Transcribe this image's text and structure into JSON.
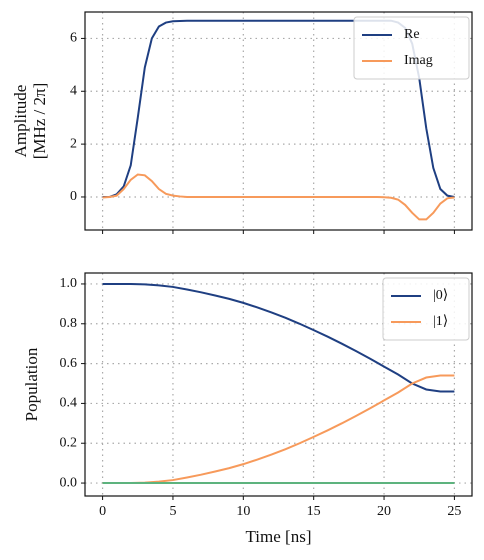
{
  "chart_data": [
    {
      "type": "line",
      "ylabel": [
        "Amplitude",
        "[MHz / 2π]"
      ],
      "x": [
        0,
        0.5,
        1,
        1.5,
        2,
        2.5,
        3,
        3.5,
        4,
        4.5,
        5,
        5.5,
        6,
        6.5,
        7,
        7.5,
        8,
        8.5,
        9,
        9.5,
        10,
        10.5,
        11,
        11.5,
        12,
        12.5,
        13,
        13.5,
        14,
        14.5,
        15,
        15.5,
        16,
        16.5,
        17,
        17.5,
        18,
        18.5,
        19,
        19.5,
        20,
        20.5,
        21,
        21.5,
        22,
        22.5,
        23,
        23.5,
        24,
        24.5,
        25
      ],
      "series": [
        {
          "name": "Re",
          "color": "#1f3f82",
          "values": [
            0,
            0,
            0.1,
            0.4,
            1.2,
            3.0,
            4.9,
            6.0,
            6.45,
            6.6,
            6.65,
            6.66,
            6.67,
            6.67,
            6.67,
            6.67,
            6.67,
            6.67,
            6.67,
            6.67,
            6.67,
            6.67,
            6.67,
            6.67,
            6.67,
            6.67,
            6.67,
            6.67,
            6.67,
            6.67,
            6.67,
            6.67,
            6.67,
            6.67,
            6.67,
            6.67,
            6.67,
            6.67,
            6.67,
            6.67,
            6.67,
            6.67,
            6.6,
            6.4,
            5.8,
            4.5,
            2.6,
            1.1,
            0.3,
            0.05,
            0
          ]
        },
        {
          "name": "Imag",
          "color": "#f79a5b",
          "values": [
            -0.02,
            0,
            0.05,
            0.3,
            0.65,
            0.85,
            0.82,
            0.6,
            0.3,
            0.12,
            0.05,
            0.02,
            0,
            0,
            0,
            0,
            0,
            0,
            0,
            0,
            0,
            0,
            0,
            0,
            0,
            0,
            0,
            0,
            0,
            0,
            0,
            0,
            0,
            0,
            0,
            0,
            0,
            0,
            0,
            0,
            -0.01,
            -0.03,
            -0.1,
            -0.3,
            -0.6,
            -0.85,
            -0.85,
            -0.6,
            -0.25,
            -0.05,
            -0.02
          ]
        }
      ],
      "xlim": [
        -1.25,
        26.25
      ],
      "xticks": [
        0,
        5,
        10,
        15,
        20,
        25
      ],
      "show_xtick_labels": false,
      "ylim": [
        -1.25,
        7.0
      ],
      "yticks": [
        0,
        2,
        4,
        6
      ],
      "grid": true,
      "legend": "upper right"
    },
    {
      "type": "line",
      "xlabel": "Time [ns]",
      "ylabel": [
        "Population"
      ],
      "x": [
        0,
        1,
        2,
        3,
        4,
        5,
        6,
        7,
        8,
        9,
        10,
        11,
        12,
        13,
        14,
        15,
        16,
        17,
        18,
        19,
        20,
        21,
        22,
        23,
        24,
        25
      ],
      "series": [
        {
          "name": "|0⟩",
          "color": "#1f3f82",
          "values": [
            1.0,
            1.0,
            1.0,
            0.998,
            0.993,
            0.985,
            0.972,
            0.958,
            0.942,
            0.925,
            0.905,
            0.882,
            0.857,
            0.83,
            0.8,
            0.768,
            0.735,
            0.7,
            0.663,
            0.625,
            0.585,
            0.545,
            0.5,
            0.47,
            0.46,
            0.46
          ]
        },
        {
          "name": "|1⟩",
          "color": "#f79a5b",
          "values": [
            0,
            0,
            0,
            0.002,
            0.007,
            0.015,
            0.028,
            0.042,
            0.058,
            0.075,
            0.095,
            0.118,
            0.143,
            0.17,
            0.2,
            0.232,
            0.265,
            0.3,
            0.337,
            0.375,
            0.415,
            0.455,
            0.5,
            0.53,
            0.54,
            0.54
          ]
        },
        {
          "color": "#5db37e",
          "values": [
            0,
            0,
            0,
            0,
            0,
            0,
            0,
            0,
            0,
            0,
            0,
            0,
            0,
            0,
            0,
            0,
            0,
            0,
            0,
            0,
            0,
            0,
            0,
            0,
            0,
            0
          ]
        }
      ],
      "xlim": [
        -1.25,
        26.25
      ],
      "xticks": [
        0,
        5,
        10,
        15,
        20,
        25
      ],
      "show_xtick_labels": true,
      "ylim": [
        -0.065,
        1.055
      ],
      "yticks": [
        {
          "value": 0,
          "label": "0.0"
        },
        0.2,
        0.4,
        0.6,
        0.8,
        {
          "value": 1,
          "label": "1.0"
        }
      ],
      "grid": true,
      "legend": "upper right"
    }
  ]
}
